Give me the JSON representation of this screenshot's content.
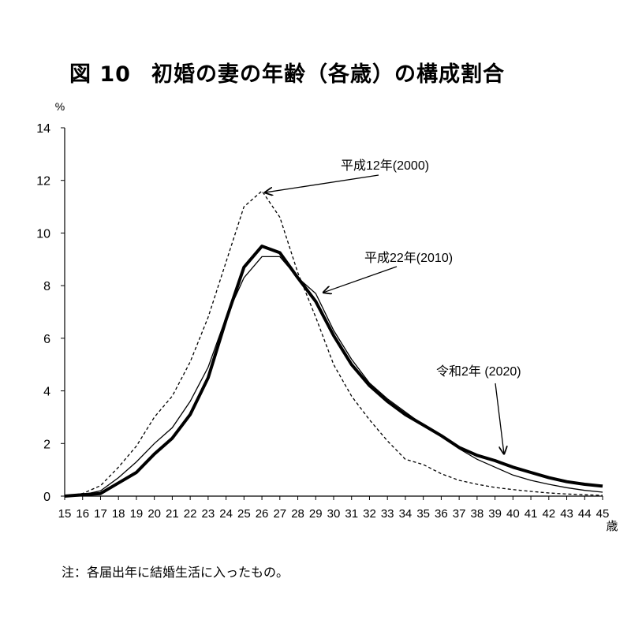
{
  "chart_data": {
    "type": "line",
    "title_prefix": "図 10",
    "title": "初婚の妻の年齢（各歳）の構成割合",
    "ylabel": "%",
    "xlabel": "歳",
    "ylim": [
      0,
      14
    ],
    "yticks": [
      0,
      2,
      4,
      6,
      8,
      10,
      12,
      14
    ],
    "x": [
      15,
      16,
      17,
      18,
      19,
      20,
      21,
      22,
      23,
      24,
      25,
      26,
      27,
      28,
      29,
      30,
      31,
      32,
      33,
      34,
      35,
      36,
      37,
      38,
      39,
      40,
      41,
      42,
      43,
      44,
      45
    ],
    "grid": false,
    "legend": "inline annotations with arrows",
    "series": [
      {
        "name": "平成12年(2000)",
        "style": "dashed",
        "values": [
          0.0,
          0.1,
          0.4,
          1.1,
          1.9,
          3.0,
          3.8,
          5.1,
          6.8,
          8.9,
          11.0,
          11.6,
          10.6,
          8.5,
          6.8,
          5.0,
          3.8,
          2.9,
          2.1,
          1.4,
          1.2,
          0.85,
          0.6,
          0.45,
          0.33,
          0.25,
          0.18,
          0.12,
          0.08,
          0.05,
          0.03
        ]
      },
      {
        "name": "平成22年(2010)",
        "style": "thin",
        "values": [
          0.0,
          0.05,
          0.2,
          0.7,
          1.3,
          2.0,
          2.6,
          3.6,
          4.9,
          6.8,
          8.3,
          9.1,
          9.1,
          8.3,
          7.7,
          6.3,
          5.2,
          4.3,
          3.7,
          3.2,
          2.7,
          2.3,
          1.8,
          1.4,
          1.1,
          0.8,
          0.6,
          0.45,
          0.32,
          0.22,
          0.15
        ]
      },
      {
        "name": "令和2年 (2020)",
        "style": "thick",
        "values": [
          0.0,
          0.05,
          0.1,
          0.5,
          0.9,
          1.6,
          2.2,
          3.1,
          4.5,
          6.7,
          8.7,
          9.5,
          9.25,
          8.3,
          7.4,
          6.1,
          5.0,
          4.2,
          3.6,
          3.1,
          2.7,
          2.3,
          1.85,
          1.55,
          1.35,
          1.1,
          0.9,
          0.7,
          0.55,
          0.45,
          0.38
        ]
      }
    ],
    "annotations": [
      {
        "series": 0,
        "text": "平成12年(2000)",
        "point_x": 26,
        "point_y": 11.6
      },
      {
        "series": 1,
        "text": "平成22年(2010)",
        "point_x": 29.3,
        "point_y": 7.8
      },
      {
        "series": 2,
        "text": "令和2年 (2020)",
        "point_x": 39.5,
        "point_y": 1.55
      }
    ]
  },
  "note": "注：各届出年に結婚生活に入ったもの。"
}
